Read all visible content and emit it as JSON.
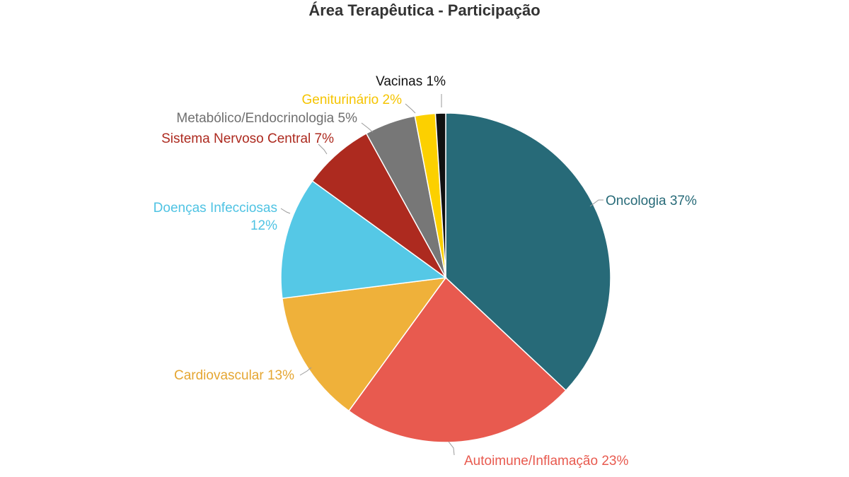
{
  "chart_data": {
    "type": "pie",
    "title": "Área Terapêutica - Participação",
    "start_angle_deg": 0,
    "direction": "clockwise",
    "slices": [
      {
        "label": "Oncologia",
        "value": 37,
        "display": "37%",
        "color": "#276a78",
        "label_color": "#276a78"
      },
      {
        "label": "Autoimune/Inflamação",
        "value": 23,
        "display": "23%",
        "color": "#e85a4f",
        "label_color": "#e85a4f"
      },
      {
        "label": "Cardiovascular",
        "value": 13,
        "display": "13%",
        "color": "#efb13a",
        "label_color": "#e5a632"
      },
      {
        "label": "Doenças Infecciosas",
        "value": 12,
        "display": "12%",
        "color": "#55c8e6",
        "label_color": "#4fc3e3"
      },
      {
        "label": "Sistema Nervoso Central",
        "value": 7,
        "display": "7%",
        "color": "#ad2a1f",
        "label_color": "#ad2a1f"
      },
      {
        "label": "Metabólico/Endocrinologia",
        "value": 5,
        "display": "5%",
        "color": "#777777",
        "label_color": "#6f6f6f"
      },
      {
        "label": "Geniturinário",
        "value": 2,
        "display": "2%",
        "color": "#fcd000",
        "label_color": "#f5c400"
      },
      {
        "label": "Vacinas",
        "value": 1,
        "display": "1%",
        "color": "#111111",
        "label_color": "#111111"
      }
    ]
  }
}
